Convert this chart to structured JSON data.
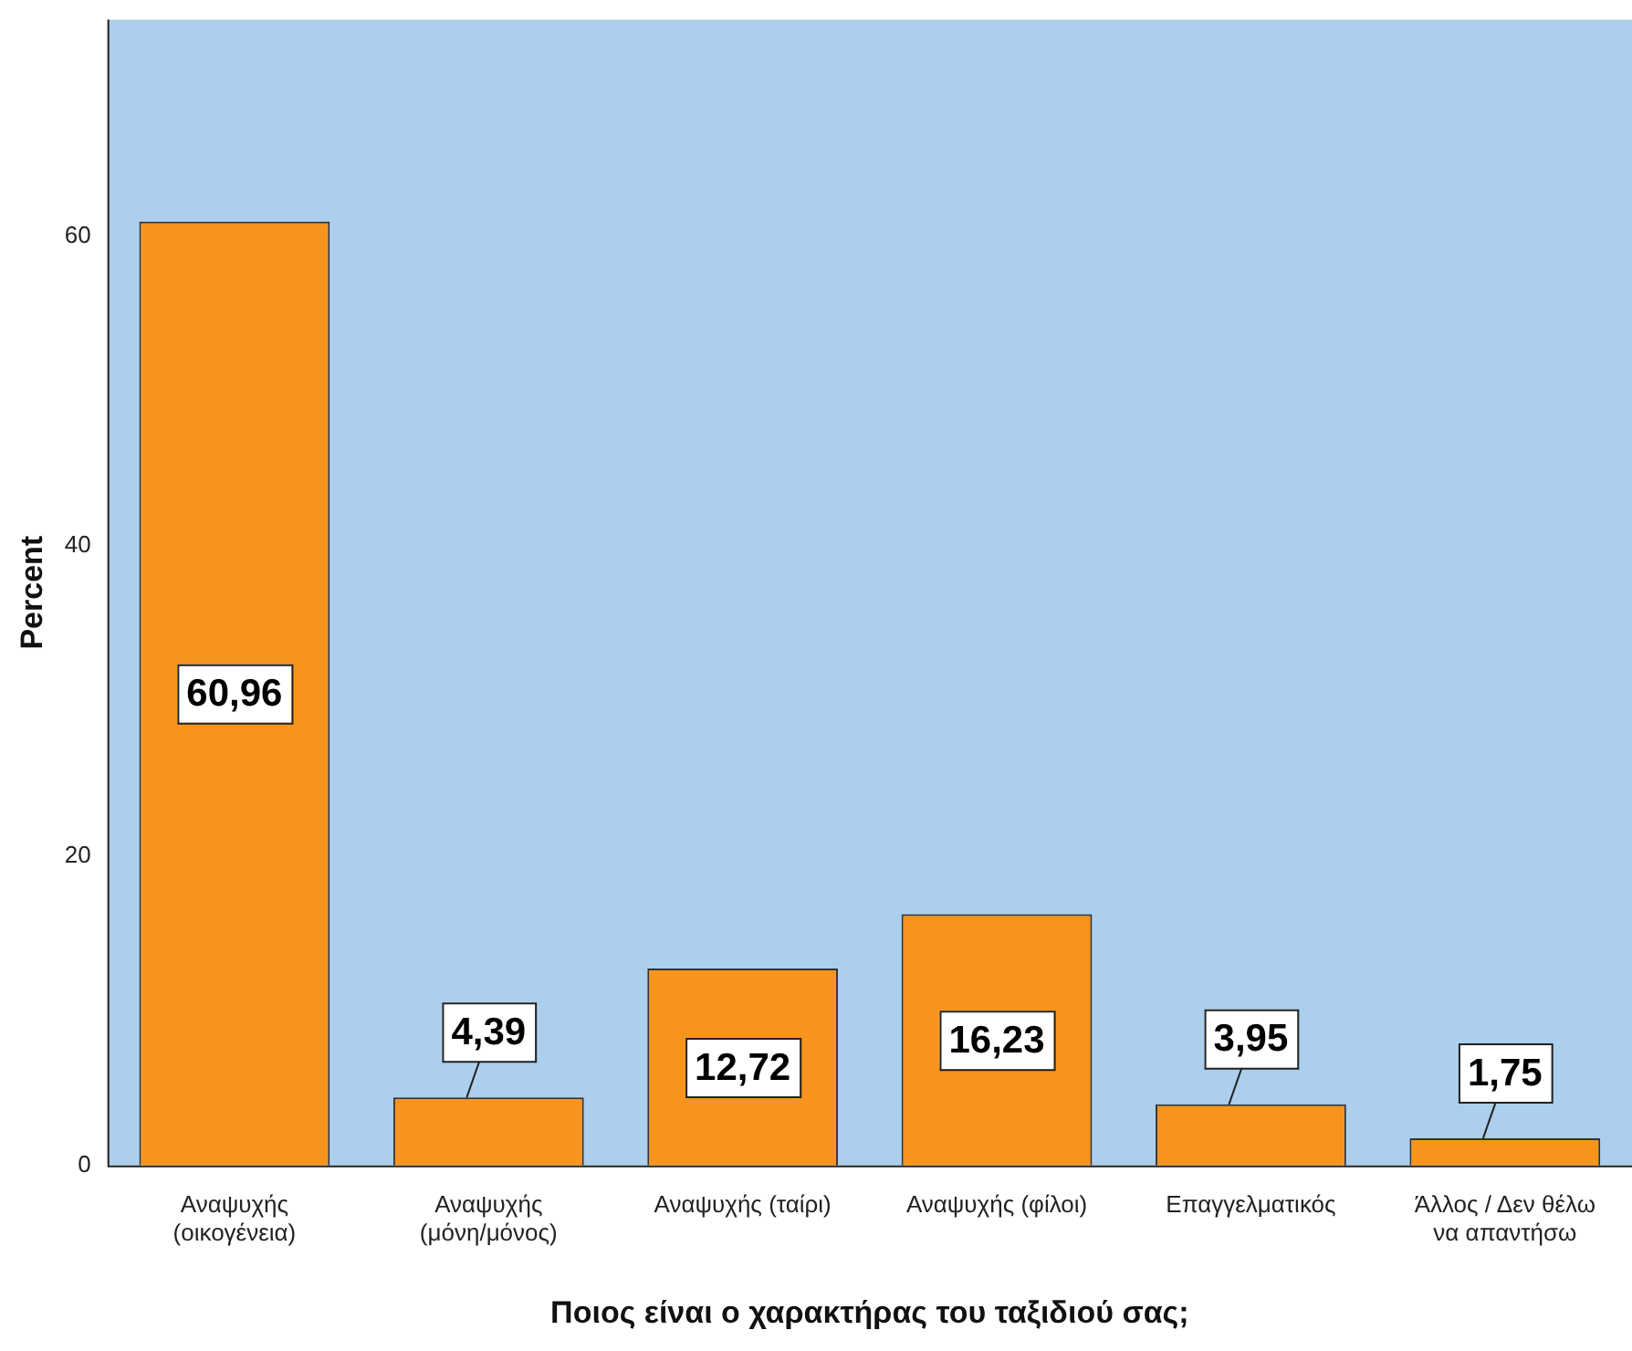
{
  "chart_data": {
    "type": "bar",
    "xlabel": "Ποιος είναι ο χαρακτήρας του ταξιδιού σας;",
    "ylabel": "Percent",
    "categories": [
      "Αναψυχής (οικογένεια)",
      "Αναψυχής (μόνη/μόνος)",
      "Αναψυχής (ταίρι)",
      "Αναψυχής (φίλοι)",
      "Επαγγελματικός",
      "Άλλος / Δεν θέλω να απαντήσω"
    ],
    "values": [
      60.96,
      4.39,
      12.72,
      16.23,
      3.95,
      1.75
    ],
    "value_labels": [
      "60,96",
      "4,39",
      "12,72",
      "16,23",
      "3,95",
      "1,75"
    ],
    "color": "#f7941d",
    "ylim": [
      0,
      74
    ],
    "yticks": [
      0,
      20,
      40,
      60
    ],
    "grid": false,
    "legend": false
  }
}
